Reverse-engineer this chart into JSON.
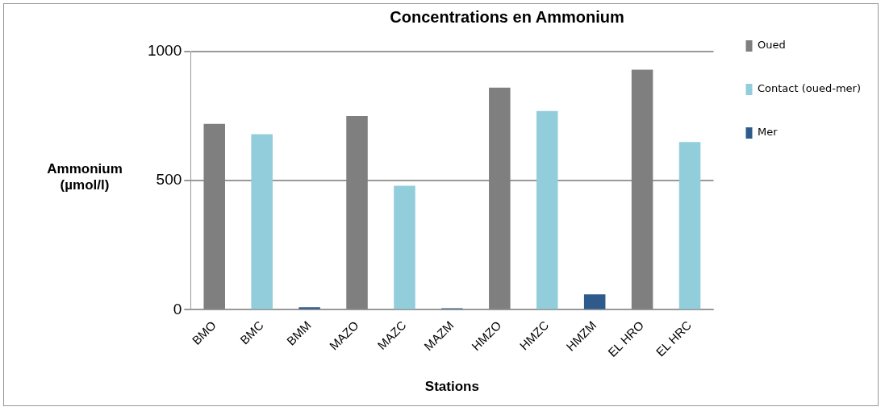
{
  "chart_data": {
    "type": "bar",
    "title": "Concentrations en Ammonium",
    "xlabel": "Stations",
    "ylabel": "Ammonium (µmol/l)",
    "categories": [
      "BMO",
      "BMC",
      "BMM",
      "MAZO",
      "MAZC",
      "MAZM",
      "HMZO",
      "HMZC",
      "HMZM",
      "EL HRO",
      "EL HRC"
    ],
    "series": [
      {
        "name": "Oued",
        "color": "#7f7f7f",
        "values": [
          720,
          null,
          null,
          750,
          null,
          null,
          860,
          null,
          null,
          930,
          null
        ]
      },
      {
        "name": "Contact (oued-mer)",
        "color": "#92cddc",
        "values": [
          null,
          680,
          null,
          null,
          480,
          null,
          null,
          770,
          null,
          null,
          650
        ]
      },
      {
        "name": "Mer",
        "color": "#2e5a8c",
        "values": [
          null,
          null,
          10,
          null,
          null,
          6,
          null,
          null,
          60,
          null,
          null
        ]
      }
    ],
    "ylim": [
      0,
      1000
    ],
    "yticks": [
      0,
      500,
      1000
    ],
    "grid": "y",
    "legend": "top right"
  }
}
